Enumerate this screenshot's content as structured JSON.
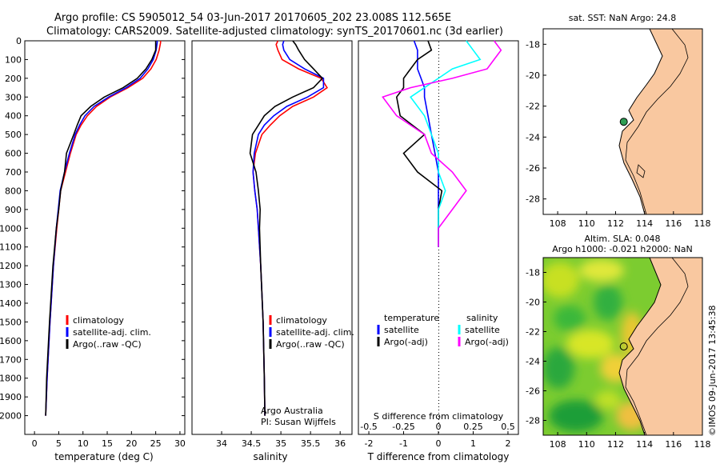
{
  "header": {
    "line1": "Argo profile: CS 5905012_54 03-Jun-2017 20170605_202 23.008S 112.565E",
    "line2": "Climatology: CARS2009. Satellite-adjusted climatology: synTS_20170601.nc (3d earlier)"
  },
  "colors": {
    "climatology": "#ff0000",
    "satellite": "#0000ff",
    "argo": "#000000",
    "salinity_satellite": "#00ffff",
    "salinity_argo": "#ff00ff",
    "land": "#f9c8a0",
    "float_marker": "#2e9e55"
  },
  "chart_data": [
    {
      "type": "line",
      "id": "temperature",
      "xlabel": "temperature (deg C)",
      "ylabel": "",
      "xlim": [
        -2,
        31
      ],
      "ylim": [
        2100,
        0
      ],
      "xticks": [
        "0",
        "5",
        "10",
        "15",
        "20",
        "25",
        "30"
      ],
      "yticks": [
        "0",
        "100",
        "200",
        "300",
        "400",
        "500",
        "600",
        "700",
        "800",
        "900",
        "1000",
        "1100",
        "1200",
        "1300",
        "1400",
        "1500",
        "1600",
        "1700",
        "1800",
        "1900",
        "2000"
      ],
      "depth": [
        0,
        10,
        50,
        100,
        150,
        200,
        250,
        300,
        350,
        400,
        450,
        500,
        600,
        700,
        800,
        900,
        1000,
        1200,
        1500,
        1800,
        2000
      ],
      "series": [
        {
          "name": "climatology",
          "values": [
            26.0,
            26.0,
            25.7,
            25.1,
            24.0,
            22.3,
            19.3,
            15.6,
            12.8,
            10.9,
            9.6,
            8.6,
            7.4,
            6.4,
            5.4,
            5.0,
            4.6,
            3.9,
            3.2,
            2.6,
            2.3
          ]
        },
        {
          "name": "satellite-adj. clim.",
          "values": [
            25.3,
            25.3,
            25.1,
            24.5,
            23.4,
            21.8,
            18.9,
            15.3,
            12.3,
            10.4,
            9.3,
            8.4,
            7.2,
            6.2,
            5.3,
            4.9,
            4.5,
            3.9,
            3.2,
            2.6,
            2.3
          ]
        },
        {
          "name": "Argo(..raw -QC)",
          "values": [
            25.0,
            25.0,
            25.0,
            24.2,
            23.0,
            21.2,
            18.3,
            14.4,
            11.6,
            9.6,
            8.8,
            8.1,
            6.6,
            6.2,
            5.4,
            5.0,
            4.5,
            3.8,
            3.1,
            2.5,
            2.3
          ]
        }
      ],
      "legend": [
        "climatology",
        "satellite-adj. clim.",
        "Argo(..raw -QC)"
      ]
    },
    {
      "type": "line",
      "id": "salinity",
      "xlabel": "salinity",
      "xlim": [
        33.5,
        36.2
      ],
      "ylim": [
        2100,
        0
      ],
      "xticks": [
        "34",
        "34.5",
        "35",
        "35.5",
        "36"
      ],
      "depth": [
        0,
        20,
        50,
        100,
        150,
        200,
        250,
        300,
        350,
        400,
        450,
        500,
        600,
        700,
        800,
        900,
        1000,
        1200,
        1500,
        1800,
        2000
      ],
      "series": [
        {
          "name": "climatology",
          "values": [
            34.95,
            34.92,
            34.95,
            35.02,
            35.3,
            35.68,
            35.78,
            35.55,
            35.2,
            34.98,
            34.82,
            34.68,
            34.57,
            34.53,
            34.56,
            34.6,
            34.62,
            34.66,
            34.7,
            34.72,
            34.73
          ]
        },
        {
          "name": "satellite-adj. clim.",
          "values": [
            35.05,
            35.03,
            35.05,
            35.15,
            35.4,
            35.72,
            35.72,
            35.45,
            35.1,
            34.88,
            34.72,
            34.62,
            34.55,
            34.53,
            34.56,
            34.6,
            34.62,
            34.66,
            34.7,
            34.72,
            34.73
          ]
        },
        {
          "name": "Argo(..raw -QC)",
          "values": [
            35.2,
            35.25,
            35.3,
            35.4,
            35.55,
            35.7,
            35.55,
            35.2,
            34.9,
            34.72,
            34.62,
            34.52,
            34.48,
            34.58,
            34.62,
            34.65,
            34.64,
            34.66,
            34.7,
            34.72,
            34.73
          ]
        }
      ],
      "legend": [
        "climatology",
        "satellite-adj. clim.",
        "Argo(..raw -QC)"
      ],
      "annotation": [
        "Argo Australia",
        "PI: Susan Wijffels"
      ]
    },
    {
      "type": "line",
      "id": "difference",
      "xlabel": "T difference from climatology",
      "x2label": "S difference from climatology",
      "xlim": [
        -2.3,
        2.3
      ],
      "ylim": [
        2100,
        0
      ],
      "xticks": [
        "-2",
        "-1",
        "0",
        "1",
        "2"
      ],
      "x2ticks": [
        "-0.5",
        "-0.25",
        "0",
        "0.25",
        "0.5"
      ],
      "depth": [
        0,
        50,
        100,
        150,
        200,
        250,
        300,
        400,
        500,
        600,
        700,
        800,
        900,
        1000,
        1100
      ],
      "series": [
        {
          "name": "temperature satellite",
          "values": [
            -0.7,
            -0.6,
            -0.6,
            -0.6,
            -0.5,
            -0.4,
            -0.4,
            -0.3,
            -0.2,
            -0.1,
            0.0,
            0.0,
            0.0,
            0.0,
            0.0
          ]
        },
        {
          "name": "temperature Argo(-adj)",
          "values": [
            -0.3,
            -0.2,
            -0.6,
            -0.8,
            -1.0,
            -1.0,
            -1.2,
            -1.1,
            -0.4,
            -1.0,
            -0.6,
            0.1,
            0.0,
            0.0,
            0.0
          ]
        },
        {
          "name": "salinity satellite",
          "values": [
            0.2,
            0.25,
            0.3,
            0.1,
            0.0,
            -0.1,
            -0.2,
            -0.1,
            -0.05,
            0.0,
            0.0,
            0.05,
            0.0,
            0.0,
            0.0
          ]
        },
        {
          "name": "salinity Argo(-adj)",
          "values": [
            0.4,
            0.45,
            0.4,
            0.35,
            0.1,
            -0.2,
            -0.4,
            -0.3,
            -0.1,
            -0.05,
            0.1,
            0.2,
            0.1,
            0.0,
            0.0
          ]
        }
      ],
      "legend": {
        "temperature_title": "temperature",
        "salinity_title": "salinity",
        "items": [
          "satellite",
          "Argo(-adj)",
          "satellite",
          "Argo(-adj)"
        ]
      }
    },
    {
      "type": "map",
      "id": "sst_map",
      "title": "sat. SST: NaN Argo: 24.8",
      "xlim": [
        107,
        118
      ],
      "ylim": [
        -29,
        -17
      ],
      "xticks": [
        "108",
        "110",
        "112",
        "114",
        "116",
        "118"
      ],
      "yticks": [
        "-18",
        "-20",
        "-22",
        "-24",
        "-26",
        "-28"
      ],
      "float_position": {
        "lon": 112.565,
        "lat": -23.008
      }
    },
    {
      "type": "map",
      "id": "sla_map",
      "title_line1": "Altim. SLA: 0.048",
      "title_line2": "Argo h1000: -0.021 h2000: NaN",
      "xlim": [
        107,
        118
      ],
      "ylim": [
        -29,
        -17
      ],
      "xticks": [
        "108",
        "110",
        "112",
        "114",
        "116",
        "118"
      ],
      "yticks": [
        "-18",
        "-20",
        "-22",
        "-24",
        "-26",
        "-28"
      ],
      "float_position": {
        "lon": 112.565,
        "lat": -23.008
      }
    }
  ],
  "footer": {
    "stamp": "©IMOS 09-Jun-2017 13:45:38"
  }
}
